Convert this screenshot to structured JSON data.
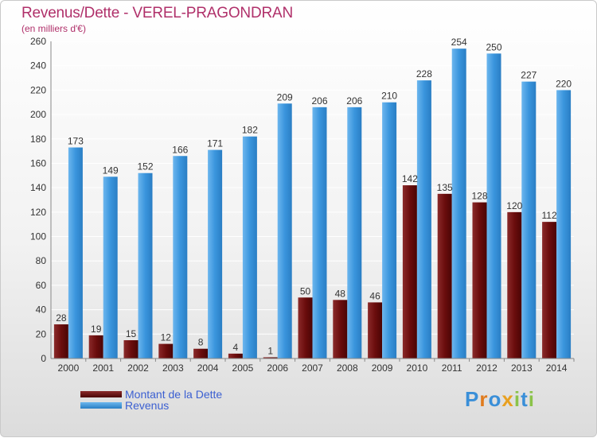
{
  "title": "Revenus/Dette - VEREL-PRAGONDRAN",
  "subtitle": "(en milliers d'€)",
  "colors": {
    "dette": "#6b0d0d",
    "revenus": "#3a95dd",
    "title": "#b0306a"
  },
  "legend": [
    {
      "label": "Montant de la Dette",
      "color": "#6b0d0d"
    },
    {
      "label": "Revenus",
      "color": "#3a95dd"
    }
  ],
  "logo": {
    "letters": [
      "P",
      "r",
      "o",
      "x",
      "i",
      "t",
      "i"
    ],
    "colors": [
      "#3a8fd8",
      "#e07b1d",
      "#3a8fd8",
      "#e8a020",
      "#8bc34a",
      "#3a8fd8",
      "#8bc34a"
    ]
  },
  "chart_data": {
    "type": "bar",
    "categories": [
      "2000",
      "2001",
      "2002",
      "2003",
      "2004",
      "2005",
      "2006",
      "2007",
      "2008",
      "2009",
      "2010",
      "2011",
      "2012",
      "2013",
      "2014"
    ],
    "series": [
      {
        "name": "Montant de la Dette",
        "values": [
          28,
          19,
          15,
          12,
          8,
          4,
          1,
          50,
          48,
          46,
          142,
          135,
          128,
          120,
          112
        ]
      },
      {
        "name": "Revenus",
        "values": [
          173,
          149,
          152,
          166,
          171,
          182,
          209,
          206,
          206,
          210,
          228,
          254,
          250,
          227,
          220
        ]
      }
    ],
    "ylim": [
      0,
      260
    ],
    "yticks": [
      0,
      20,
      40,
      60,
      80,
      100,
      120,
      140,
      160,
      180,
      200,
      220,
      240,
      260
    ],
    "grid": true,
    "xlabel": "",
    "ylabel": ""
  }
}
